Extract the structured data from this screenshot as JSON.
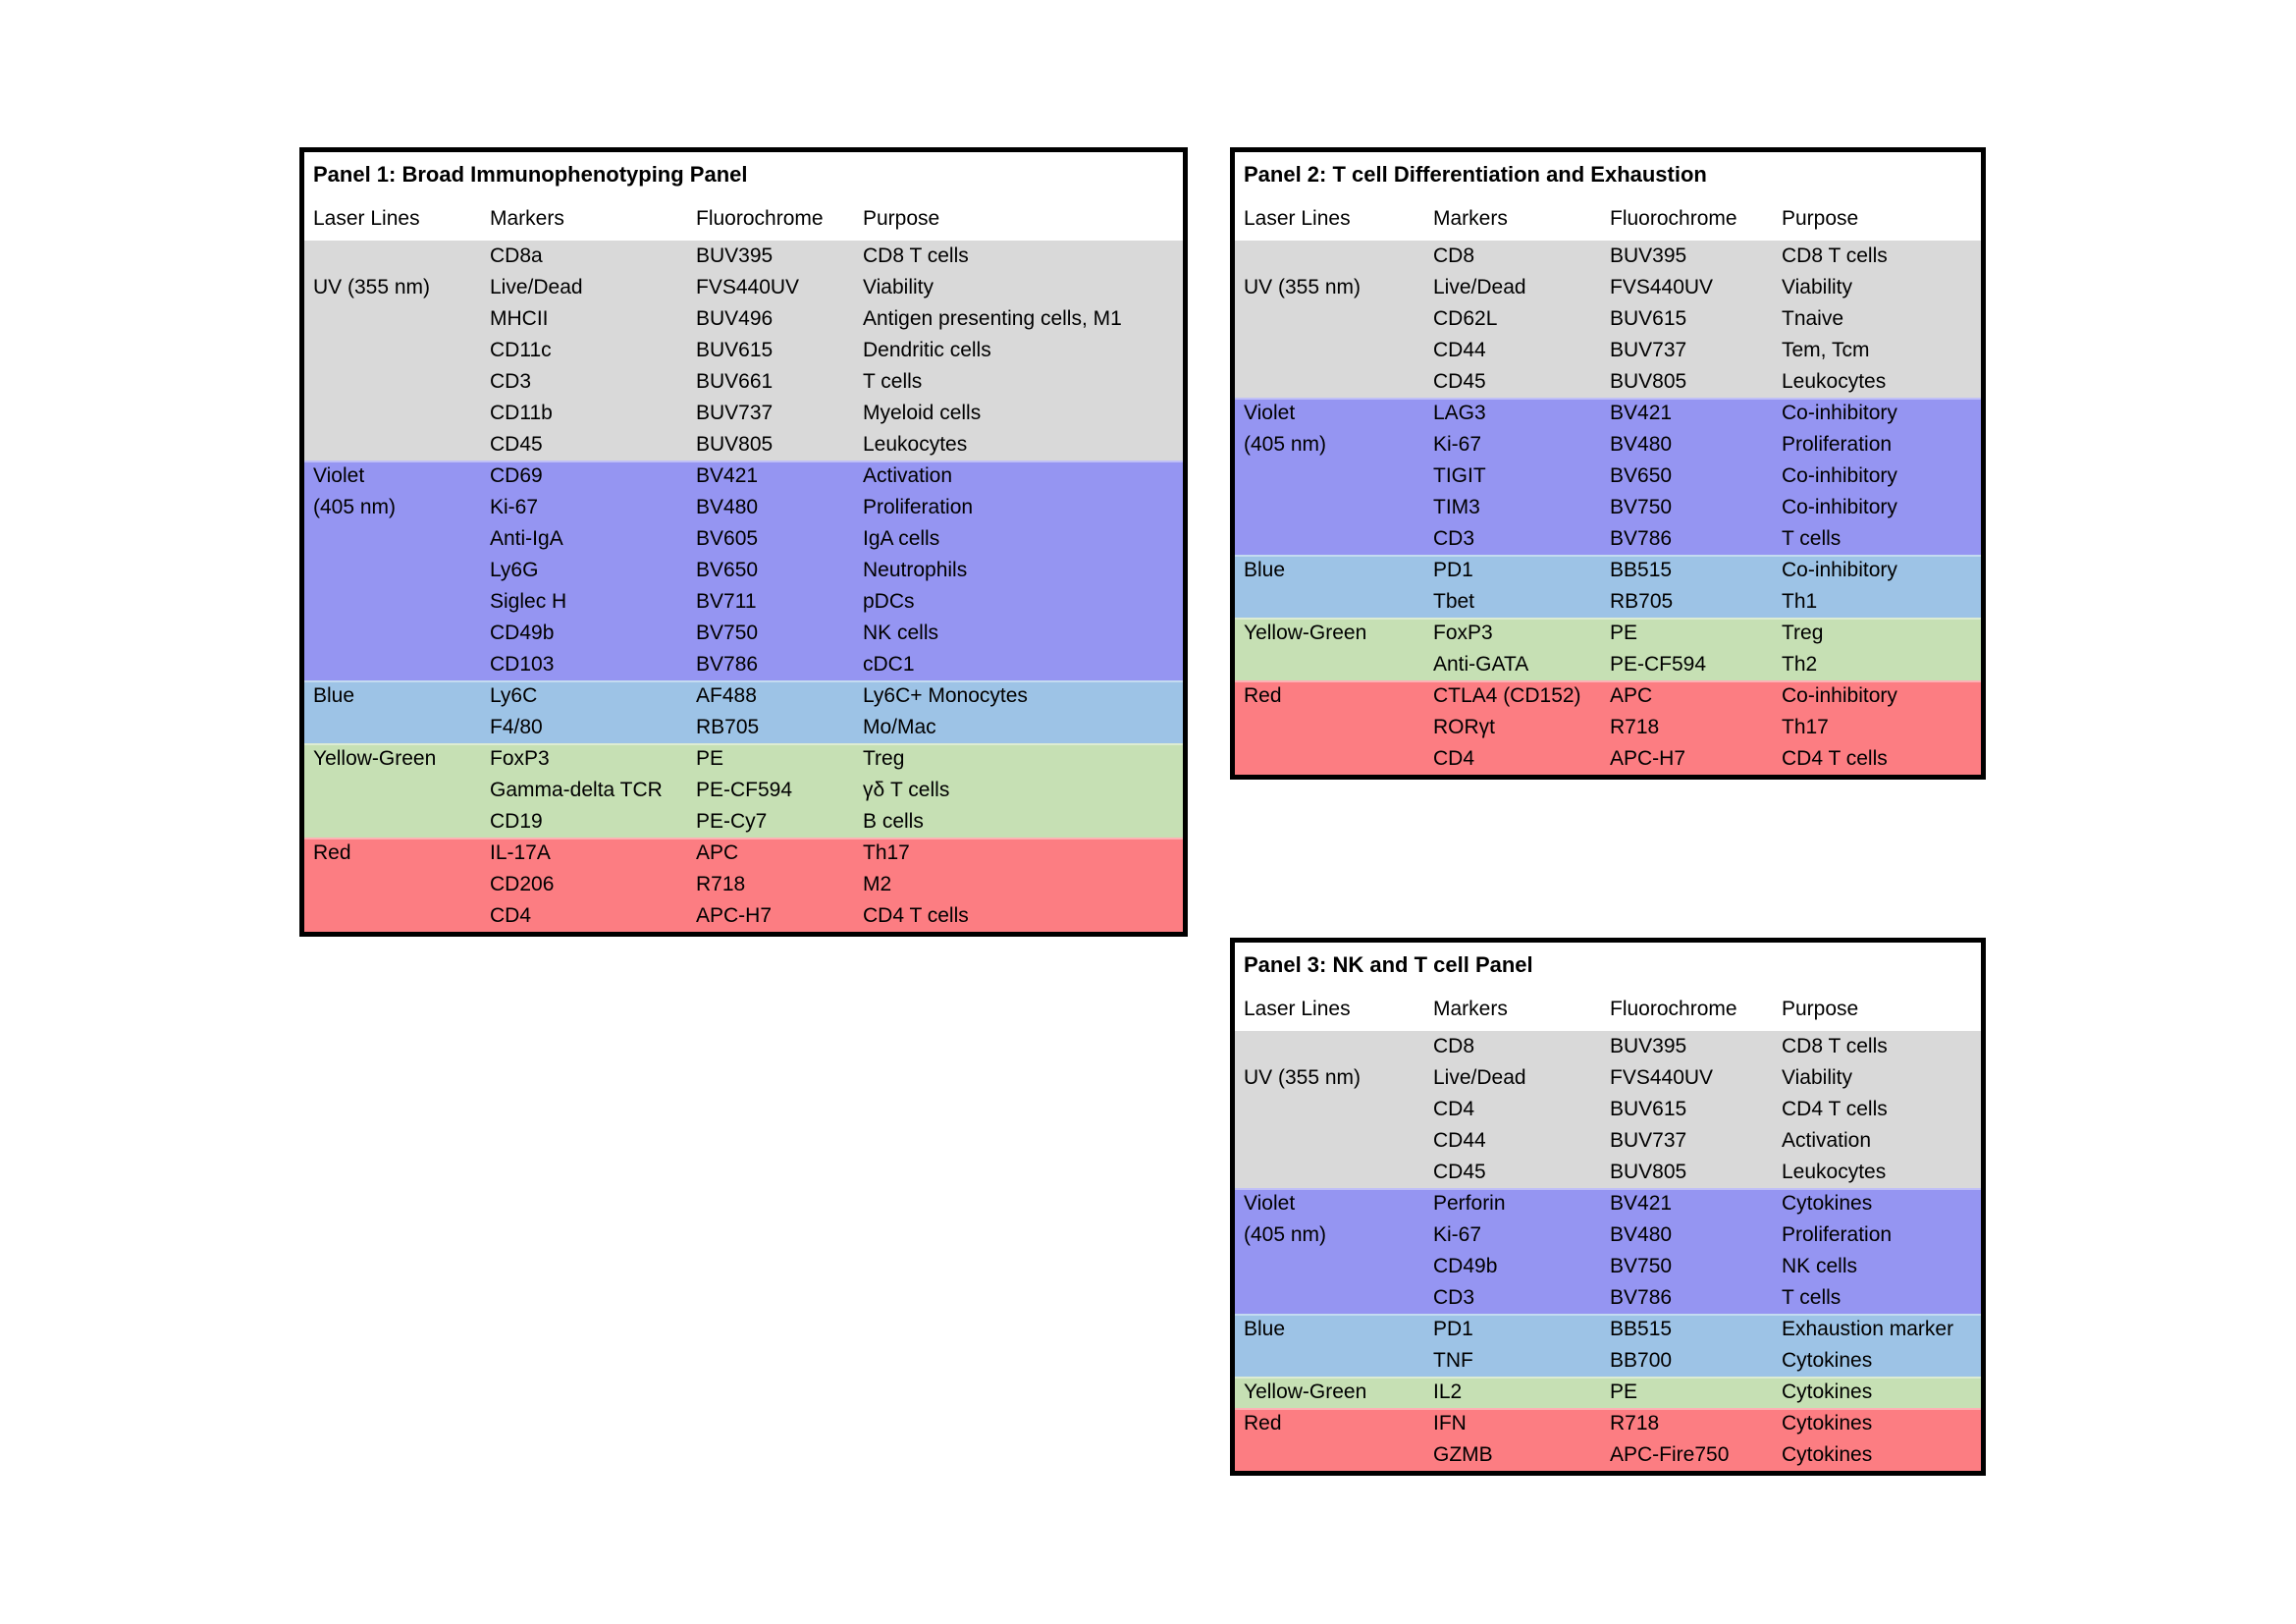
{
  "page": {
    "background": "#ffffff",
    "border_color": "#000000",
    "text_color": "#000000"
  },
  "colors": {
    "uv": "#d9d9d9",
    "violet": "#9595f2",
    "blue": "#9dc3e6",
    "yellow_green": "#c6e0b4",
    "red": "#fc7d82"
  },
  "columns": [
    "Laser Lines",
    "Markers",
    "Fluorochrome",
    "Purpose"
  ],
  "panels": [
    {
      "title": "Panel 1: Broad Immunophenotyping Panel",
      "sections": [
        {
          "laser": "uv",
          "rows": [
            [
              "",
              "CD8a",
              "BUV395",
              "CD8 T cells"
            ],
            [
              "UV (355 nm)",
              "Live/Dead",
              "FVS440UV",
              "Viability"
            ],
            [
              "",
              "MHCII",
              "BUV496",
              "Antigen presenting cells, M1"
            ],
            [
              "",
              "CD11c",
              "BUV615",
              "Dendritic cells"
            ],
            [
              "",
              "CD3",
              "BUV661",
              "T cells"
            ],
            [
              "",
              "CD11b",
              "BUV737",
              "Myeloid cells"
            ],
            [
              "",
              "CD45",
              "BUV805",
              "Leukocytes"
            ]
          ]
        },
        {
          "laser": "violet",
          "rows": [
            [
              "Violet",
              "CD69",
              "BV421",
              "Activation"
            ],
            [
              "(405 nm)",
              "Ki-67",
              "BV480",
              "Proliferation"
            ],
            [
              "",
              "Anti-IgA",
              "BV605",
              "IgA cells"
            ],
            [
              "",
              "Ly6G",
              "BV650",
              "Neutrophils"
            ],
            [
              "",
              "Siglec H",
              "BV711",
              "pDCs"
            ],
            [
              "",
              "CD49b",
              "BV750",
              "NK cells"
            ],
            [
              "",
              "CD103",
              "BV786",
              "cDC1"
            ]
          ]
        },
        {
          "laser": "blue",
          "rows": [
            [
              "Blue",
              "Ly6C",
              "AF488",
              "Ly6C+ Monocytes"
            ],
            [
              "",
              "F4/80",
              "RB705",
              "Mo/Mac"
            ]
          ]
        },
        {
          "laser": "yellow_green",
          "rows": [
            [
              "Yellow-Green",
              "FoxP3",
              "PE",
              "Treg"
            ],
            [
              "",
              "Gamma-delta TCR",
              "PE-CF594",
              "γδ T cells"
            ],
            [
              "",
              "CD19",
              "PE-Cy7",
              "B cells"
            ]
          ]
        },
        {
          "laser": "red",
          "rows": [
            [
              "Red",
              "IL-17A",
              "APC",
              "Th17"
            ],
            [
              "",
              "CD206",
              "R718",
              "M2"
            ],
            [
              "",
              "CD4",
              "APC-H7",
              "CD4 T cells"
            ]
          ]
        }
      ]
    },
    {
      "title": "Panel 2: T cell Differentiation and Exhaustion",
      "sections": [
        {
          "laser": "uv",
          "rows": [
            [
              "",
              "CD8",
              "BUV395",
              "CD8 T cells"
            ],
            [
              "UV (355 nm)",
              "Live/Dead",
              "FVS440UV",
              "Viability"
            ],
            [
              "",
              "CD62L",
              "BUV615",
              "Tnaive"
            ],
            [
              "",
              "CD44",
              "BUV737",
              "Tem, Tcm"
            ],
            [
              "",
              "CD45",
              "BUV805",
              "Leukocytes"
            ]
          ]
        },
        {
          "laser": "violet",
          "rows": [
            [
              "Violet",
              "LAG3",
              "BV421",
              "Co-inhibitory"
            ],
            [
              "(405 nm)",
              "Ki-67",
              "BV480",
              "Proliferation"
            ],
            [
              "",
              "TIGIT",
              "BV650",
              "Co-inhibitory"
            ],
            [
              "",
              "TIM3",
              "BV750",
              "Co-inhibitory"
            ],
            [
              "",
              "CD3",
              "BV786",
              "T cells"
            ]
          ]
        },
        {
          "laser": "blue",
          "rows": [
            [
              "Blue",
              "PD1",
              "BB515",
              "Co-inhibitory"
            ],
            [
              "",
              "Tbet",
              "RB705",
              "Th1"
            ]
          ]
        },
        {
          "laser": "yellow_green",
          "rows": [
            [
              "Yellow-Green",
              "FoxP3",
              "PE",
              "Treg"
            ],
            [
              "",
              "Anti-GATA",
              "PE-CF594",
              "Th2"
            ]
          ]
        },
        {
          "laser": "red",
          "rows": [
            [
              "Red",
              "CTLA4 (CD152)",
              "APC",
              "Co-inhibitory"
            ],
            [
              "",
              "RORγt",
              "R718",
              "Th17"
            ],
            [
              "",
              "CD4",
              "APC-H7",
              "CD4 T cells"
            ]
          ]
        }
      ]
    },
    {
      "title": "Panel 3: NK and T cell Panel",
      "sections": [
        {
          "laser": "uv",
          "rows": [
            [
              "",
              "CD8",
              "BUV395",
              "CD8 T cells"
            ],
            [
              "UV (355 nm)",
              "Live/Dead",
              "FVS440UV",
              "Viability"
            ],
            [
              "",
              "CD4",
              "BUV615",
              "CD4 T cells"
            ],
            [
              "",
              "CD44",
              "BUV737",
              "Activation"
            ],
            [
              "",
              "CD45",
              "BUV805",
              "Leukocytes"
            ]
          ]
        },
        {
          "laser": "violet",
          "rows": [
            [
              "Violet",
              "Perforin",
              "BV421",
              "Cytokines"
            ],
            [
              "(405 nm)",
              "Ki-67",
              "BV480",
              "Proliferation"
            ],
            [
              "",
              "CD49b",
              "BV750",
              "NK cells"
            ],
            [
              "",
              "CD3",
              "BV786",
              "T cells"
            ]
          ]
        },
        {
          "laser": "blue",
          "rows": [
            [
              "Blue",
              "PD1",
              "BB515",
              "Exhaustion marker"
            ],
            [
              "",
              "TNF",
              "BB700",
              "Cytokines"
            ]
          ]
        },
        {
          "laser": "yellow_green",
          "rows": [
            [
              "Yellow-Green",
              "IL2",
              "PE",
              "Cytokines"
            ]
          ]
        },
        {
          "laser": "red",
          "rows": [
            [
              "Red",
              "IFN",
              "R718",
              "Cytokines"
            ],
            [
              "",
              "GZMB",
              "APC-Fire750",
              "Cytokines"
            ]
          ]
        }
      ]
    }
  ]
}
